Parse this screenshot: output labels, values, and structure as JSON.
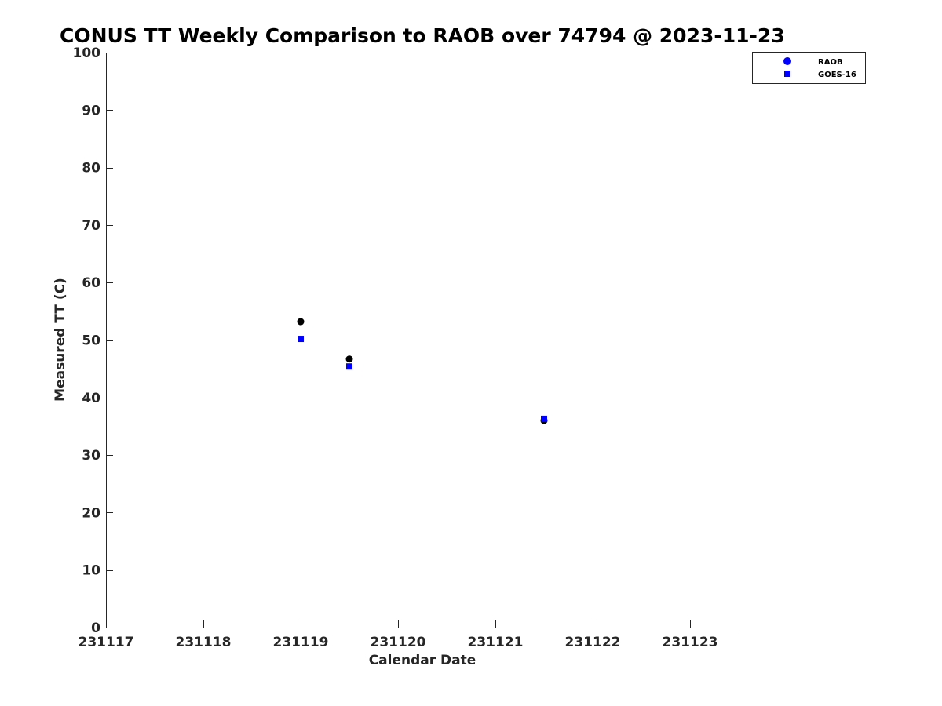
{
  "chart_data": {
    "type": "scatter",
    "title": "CONUS TT Weekly Comparison to RAOB over 74794 @ 2023-11-23",
    "xlabel": "Calendar Date",
    "ylabel": "Measured TT (C)",
    "x_tick_labels": [
      "231117",
      "231118",
      "231119",
      "231120",
      "231121",
      "231122",
      "231123"
    ],
    "x_tick_values": [
      231117,
      231118,
      231119,
      231120,
      231121,
      231122,
      231123
    ],
    "xlim": [
      231117,
      231123.5
    ],
    "y_tick_labels": [
      "0",
      "10",
      "20",
      "30",
      "40",
      "50",
      "60",
      "70",
      "80",
      "90",
      "100"
    ],
    "y_tick_values": [
      0,
      10,
      20,
      30,
      40,
      50,
      60,
      70,
      80,
      90,
      100
    ],
    "ylim": [
      0,
      100
    ],
    "grid": false,
    "legend_position": "top-right",
    "series": [
      {
        "name": "RAOB",
        "marker": "circle",
        "legend_color": "#0000ff",
        "point_color": "#000000",
        "x": [
          231119,
          231119.5,
          231121.5
        ],
        "y": [
          53.2,
          46.7,
          36.0
        ]
      },
      {
        "name": "GOES-16",
        "marker": "square",
        "legend_color": "#0000ff",
        "point_color": "#0000ff",
        "x": [
          231119,
          231119.5,
          231121.5
        ],
        "y": [
          50.2,
          45.4,
          36.3
        ]
      }
    ]
  }
}
